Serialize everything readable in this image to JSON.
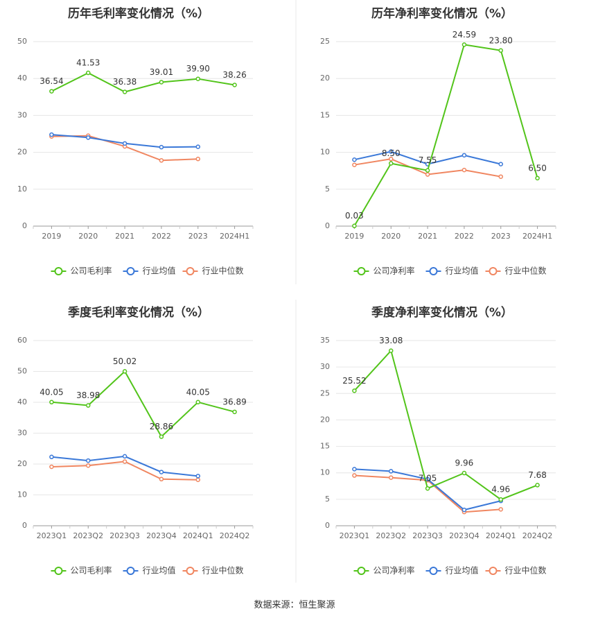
{
  "source_note": "数据来源：恒生聚源",
  "chart_data": [
    {
      "type": "line",
      "title": "历年毛利率变化情况（%）",
      "categories": [
        "2019",
        "2020",
        "2021",
        "2022",
        "2023",
        "2024H1"
      ],
      "ylim": [
        0,
        50
      ],
      "yticks": [
        0,
        10,
        20,
        30,
        40,
        50
      ],
      "series": [
        {
          "name": "公司毛利率",
          "color": "#52c41a",
          "values": [
            36.54,
            41.53,
            36.38,
            39.01,
            39.9,
            38.26
          ],
          "labels": true
        },
        {
          "name": "行业均值",
          "color": "#3a78d8",
          "values": [
            24.8,
            24.0,
            22.4,
            21.4,
            21.5,
            null
          ],
          "labels": false
        },
        {
          "name": "行业中位数",
          "color": "#f08660",
          "values": [
            24.3,
            24.5,
            21.6,
            17.8,
            18.2,
            null
          ],
          "labels": false
        }
      ],
      "data_labels": [
        "36.54",
        "41.53",
        "36.38",
        "39.01",
        "39.90",
        "38.26"
      ]
    },
    {
      "type": "line",
      "title": "历年净利率变化情况（%）",
      "categories": [
        "2019",
        "2020",
        "2021",
        "2022",
        "2023",
        "2024H1"
      ],
      "ylim": [
        0,
        25
      ],
      "yticks": [
        0,
        5,
        10,
        15,
        20,
        25
      ],
      "series": [
        {
          "name": "公司净利率",
          "color": "#52c41a",
          "values": [
            0.03,
            8.5,
            7.55,
            24.59,
            23.8,
            6.5
          ],
          "labels": true
        },
        {
          "name": "行业均值",
          "color": "#3a78d8",
          "values": [
            9.0,
            10.1,
            8.4,
            9.6,
            8.4,
            null
          ],
          "labels": false
        },
        {
          "name": "行业中位数",
          "color": "#f08660",
          "values": [
            8.3,
            9.1,
            7.0,
            7.6,
            6.7,
            null
          ],
          "labels": false
        }
      ],
      "data_labels": [
        "0.03",
        "8.50",
        "7.55",
        "24.59",
        "23.80",
        "6.50"
      ]
    },
    {
      "type": "line",
      "title": "季度毛利率变化情况（%）",
      "categories": [
        "2023Q1",
        "2023Q2",
        "2023Q3",
        "2023Q4",
        "2024Q1",
        "2024Q2"
      ],
      "ylim": [
        0,
        60
      ],
      "yticks": [
        0,
        10,
        20,
        30,
        40,
        50,
        60
      ],
      "series": [
        {
          "name": "公司毛利率",
          "color": "#52c41a",
          "values": [
            40.05,
            38.98,
            50.02,
            28.86,
            40.05,
            36.89
          ],
          "labels": true
        },
        {
          "name": "行业均值",
          "color": "#3a78d8",
          "values": [
            22.3,
            21.1,
            22.5,
            17.4,
            16.1,
            null
          ],
          "labels": false
        },
        {
          "name": "行业中位数",
          "color": "#f08660",
          "values": [
            19.1,
            19.5,
            20.8,
            15.1,
            14.9,
            null
          ],
          "labels": false
        }
      ],
      "data_labels": [
        "40.05",
        "38.98",
        "50.02",
        "28.86",
        "40.05",
        "36.89"
      ]
    },
    {
      "type": "line",
      "title": "季度净利率变化情况（%）",
      "categories": [
        "2023Q1",
        "2023Q2",
        "2023Q3",
        "2023Q4",
        "2024Q1",
        "2024Q2"
      ],
      "ylim": [
        0,
        35
      ],
      "yticks": [
        0,
        5,
        10,
        15,
        20,
        25,
        30,
        35
      ],
      "series": [
        {
          "name": "公司净利率",
          "color": "#52c41a",
          "values": [
            25.52,
            33.08,
            7.05,
            9.96,
            4.96,
            7.68
          ],
          "labels": true
        },
        {
          "name": "行业均值",
          "color": "#3a78d8",
          "values": [
            10.7,
            10.3,
            8.8,
            3.0,
            4.7,
            null
          ],
          "labels": false
        },
        {
          "name": "行业中位数",
          "color": "#f08660",
          "values": [
            9.5,
            9.1,
            8.6,
            2.6,
            3.1,
            null
          ],
          "labels": false
        }
      ],
      "data_labels": [
        "25.52",
        "33.08",
        "7.05",
        "9.96",
        "4.96",
        "7.68"
      ]
    }
  ]
}
